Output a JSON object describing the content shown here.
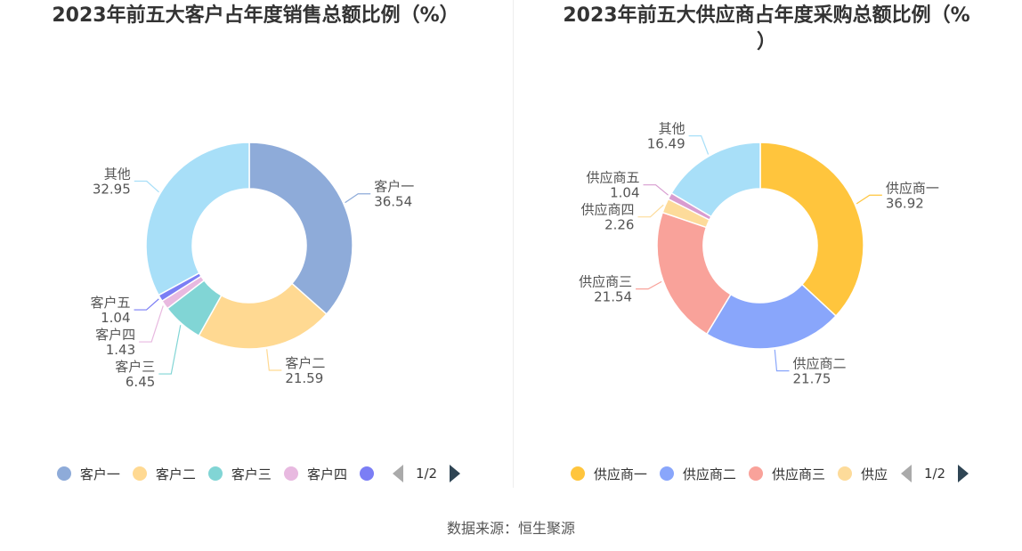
{
  "footer": "数据来源：恒生聚源",
  "charts": [
    {
      "title": "2023年前五大客户占年度销售总额比例（%）",
      "legend": [
        {
          "name": "客户一",
          "color": "#8eabd9"
        },
        {
          "name": "客户二",
          "color": "#ffd992"
        },
        {
          "name": "客户三",
          "color": "#81d5d5"
        },
        {
          "name": "客户四",
          "color": "#e8b9e0"
        },
        {
          "name": "",
          "color": "#7b7ef5"
        }
      ],
      "page": "1/2"
    },
    {
      "title": "2023年前五大供应商占年度采购总额比例（%\n）",
      "legend": [
        {
          "name": "供应商一",
          "color": "#ffc53d"
        },
        {
          "name": "供应商二",
          "color": "#89a6fb"
        },
        {
          "name": "供应商三",
          "color": "#f9a29a"
        },
        {
          "name": "供应",
          "color": "#fddb9a"
        }
      ],
      "page": "1/2"
    }
  ],
  "chart_data": [
    {
      "type": "pie",
      "title": "2023年前五大客户占年度销售总额比例（%）",
      "slices": [
        {
          "label": "客户一",
          "value": 36.54,
          "value_text": "36.54",
          "color": "#8eabd9"
        },
        {
          "label": "客户二",
          "value": 21.59,
          "value_text": "21.59",
          "color": "#ffd992"
        },
        {
          "label": "客户三",
          "value": 6.45,
          "value_text": "6.45",
          "color": "#81d5d5"
        },
        {
          "label": "客户四",
          "value": 1.43,
          "value_text": "1.43",
          "color": "#e8b9e0"
        },
        {
          "label": "客户五",
          "value": 1.04,
          "value_text": "1.04",
          "color": "#7b7ef5"
        },
        {
          "label": "其他",
          "value": 32.95,
          "value_text": "32.95",
          "color": "#a8dff8"
        }
      ]
    },
    {
      "type": "pie",
      "title": "2023年前五大供应商占年度采购总额比例（%）",
      "slices": [
        {
          "label": "供应商一",
          "value": 36.92,
          "value_text": "36.92",
          "color": "#ffc53d"
        },
        {
          "label": "供应商二",
          "value": 21.75,
          "value_text": "21.75",
          "color": "#89a6fb"
        },
        {
          "label": "供应商三",
          "value": 21.54,
          "value_text": "21.54",
          "color": "#f9a29a"
        },
        {
          "label": "供应商四",
          "value": 2.26,
          "value_text": "2.26",
          "color": "#fddb9a"
        },
        {
          "label": "供应商五",
          "value": 1.04,
          "value_text": "1.04",
          "color": "#d89cd0"
        },
        {
          "label": "其他",
          "value": 16.49,
          "value_text": "16.49",
          "color": "#a8dff8"
        }
      ]
    }
  ]
}
